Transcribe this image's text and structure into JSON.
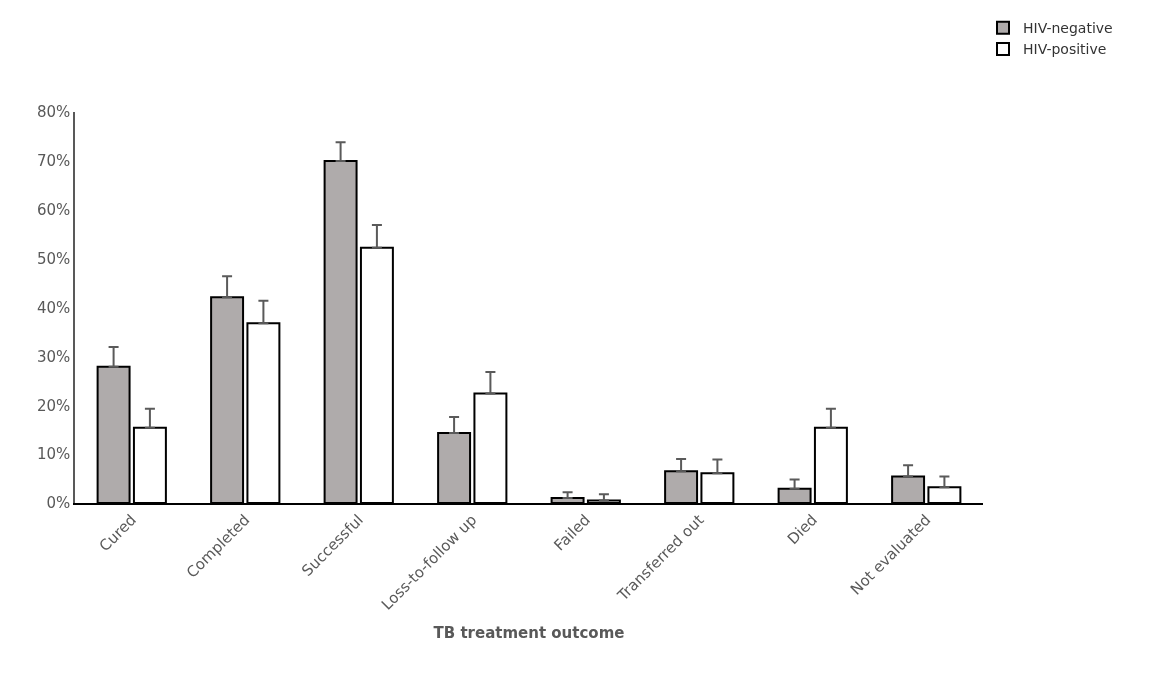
{
  "chart_data": {
    "type": "bar",
    "xlabel": "TB treatment outcome",
    "categories": [
      "Cured",
      "Completed",
      "Successful",
      "Loss-to-follow up",
      "Failed",
      "Transferred out",
      "Died",
      "Not evaluated"
    ],
    "series": [
      {
        "name": "HIV-negative",
        "color": "#afabab",
        "values": [
          27.9,
          42.1,
          70.0,
          14.3,
          1.0,
          6.5,
          2.9,
          5.4
        ],
        "errors": [
          [
            27.9,
            31.9
          ],
          [
            42.1,
            46.4
          ],
          [
            70.0,
            73.8
          ],
          [
            14.3,
            17.6
          ],
          [
            1.0,
            2.2
          ],
          [
            6.5,
            9.0
          ],
          [
            2.9,
            4.8
          ],
          [
            5.4,
            7.7
          ]
        ]
      },
      {
        "name": "HIV-positive",
        "color": "#ffffff",
        "values": [
          15.4,
          36.8,
          52.2,
          22.4,
          0.5,
          6.1,
          15.4,
          3.2
        ],
        "errors": [
          [
            15.4,
            19.3
          ],
          [
            36.8,
            41.4
          ],
          [
            52.2,
            56.9
          ],
          [
            22.4,
            26.8
          ],
          [
            0.5,
            1.8
          ],
          [
            6.1,
            8.9
          ],
          [
            15.4,
            19.3
          ],
          [
            3.2,
            5.4
          ]
        ]
      }
    ],
    "ylim": [
      0,
      80
    ],
    "yticks": [
      {
        "value": 0,
        "label": "0%"
      },
      {
        "value": 10,
        "label": "10%"
      },
      {
        "value": 20,
        "label": "20%"
      },
      {
        "value": 30,
        "label": "30%"
      },
      {
        "value": 40,
        "label": "40%"
      },
      {
        "value": 50,
        "label": "50%"
      },
      {
        "value": 60,
        "label": "60%"
      },
      {
        "value": 70,
        "label": "70%"
      },
      {
        "value": 80,
        "label": "80%"
      }
    ],
    "legend": "top right"
  }
}
